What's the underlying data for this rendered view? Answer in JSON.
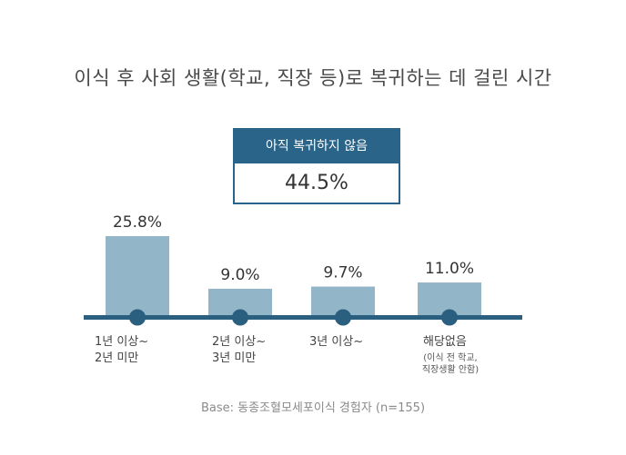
{
  "title": "이식 후 사회 생활(학교, 직장 등)로 복귀하는 데 걸린 시간",
  "callout": {
    "label": "아직 복귀하지 않음",
    "value": "44.5%"
  },
  "base_note": "Base: 동종조혈모세포이식 경험자 (n=155)",
  "colors": {
    "bar": "#93b5c8",
    "axis": "#2a5f80",
    "dot": "#2a5f80",
    "callout": "#2a6489"
  },
  "chart_data": {
    "type": "bar",
    "categories": [
      "1년 이상~\n2년 미만",
      "2년 이상~\n3년 미만",
      "3년 이상~",
      "해당없음"
    ],
    "category_notes": [
      "",
      "",
      "",
      "(이식 전 학교,\n직장생활 안함)"
    ],
    "values": [
      25.8,
      9.0,
      9.7,
      11.0
    ],
    "data_labels": [
      "25.8%",
      "9.0%",
      "9.7%",
      "11.0%"
    ],
    "unit": "%",
    "title": "이식 후 사회 생활(학교, 직장 등)로 복귀하는 데 걸린 시간",
    "xlabel": "",
    "ylabel": "",
    "ylim": [
      0,
      25.8
    ],
    "grid": false
  }
}
